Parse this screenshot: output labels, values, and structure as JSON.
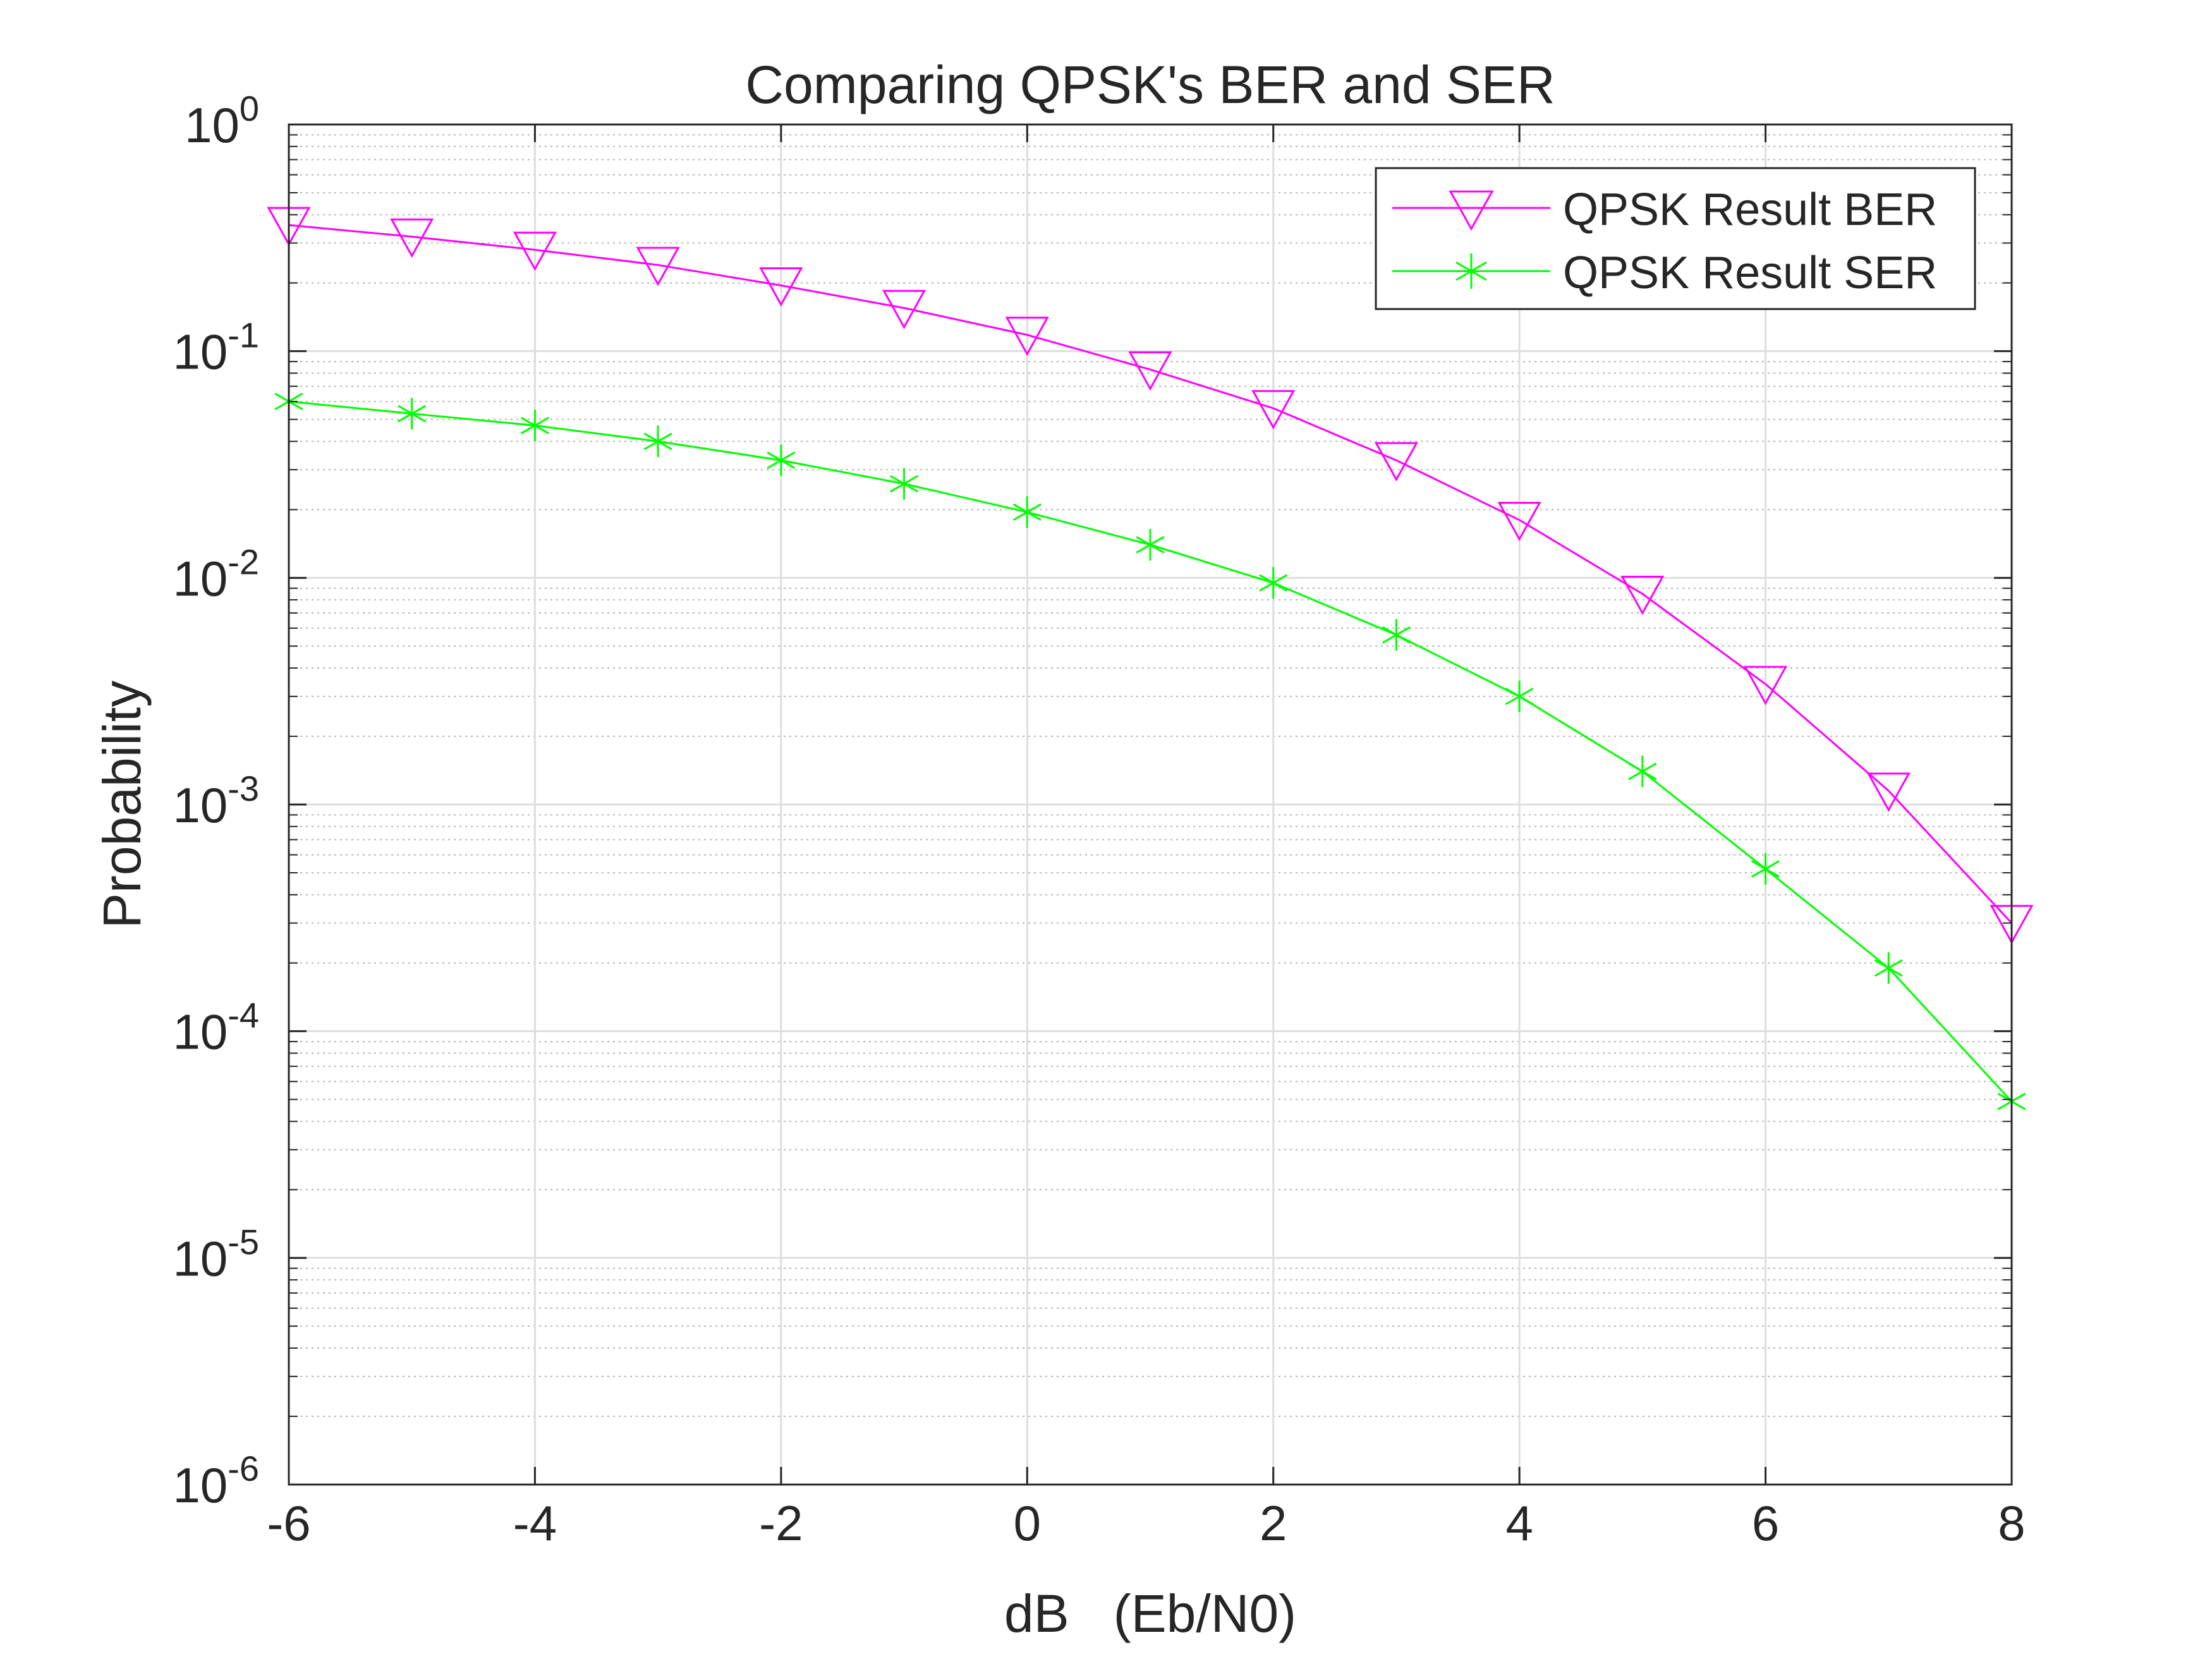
{
  "chart_data": {
    "type": "line",
    "title": "Comparing QPSK's BER and SER",
    "xlabel": "dB   (Eb/N0)",
    "ylabel": "Probability",
    "xlim": [
      -6,
      8
    ],
    "ylim": [
      1e-06,
      1
    ],
    "yscale": "log",
    "grid": true,
    "minor_grid": true,
    "legend_position": "top-right",
    "x_ticks": [
      {
        "value": -6,
        "label": "-6"
      },
      {
        "value": -4,
        "label": "-4"
      },
      {
        "value": -2,
        "label": "-2"
      },
      {
        "value": 0,
        "label": "0"
      },
      {
        "value": 2,
        "label": "2"
      },
      {
        "value": 4,
        "label": "4"
      },
      {
        "value": 6,
        "label": "6"
      },
      {
        "value": 8,
        "label": "8"
      }
    ],
    "y_ticks": [
      {
        "exp": 0,
        "base": "10",
        "sup": "0"
      },
      {
        "exp": -1,
        "base": "10",
        "sup": "-1"
      },
      {
        "exp": -2,
        "base": "10",
        "sup": "-2"
      },
      {
        "exp": -3,
        "base": "10",
        "sup": "-3"
      },
      {
        "exp": -4,
        "base": "10",
        "sup": "-4"
      },
      {
        "exp": -5,
        "base": "10",
        "sup": "-5"
      },
      {
        "exp": -6,
        "base": "10",
        "sup": "-6"
      }
    ],
    "x": [
      -6,
      -5,
      -4,
      -3,
      -2,
      -1,
      0,
      1,
      2,
      3,
      4,
      5,
      6,
      7,
      8
    ],
    "series": [
      {
        "name": "QPSK Result BER",
        "color": "#ff00ff",
        "marker": "triangle-down",
        "values": [
          0.36,
          0.32,
          0.28,
          0.24,
          0.195,
          0.155,
          0.118,
          0.083,
          0.056,
          0.033,
          0.018,
          0.0085,
          0.0034,
          0.00115,
          0.0003
        ]
      },
      {
        "name": "QPSK Result SER",
        "color": "#00ff00",
        "marker": "asterisk",
        "values": [
          0.06,
          0.053,
          0.047,
          0.04,
          0.033,
          0.026,
          0.0195,
          0.014,
          0.0095,
          0.0056,
          0.003,
          0.0014,
          0.00052,
          0.00019,
          4.9e-05
        ]
      }
    ]
  }
}
